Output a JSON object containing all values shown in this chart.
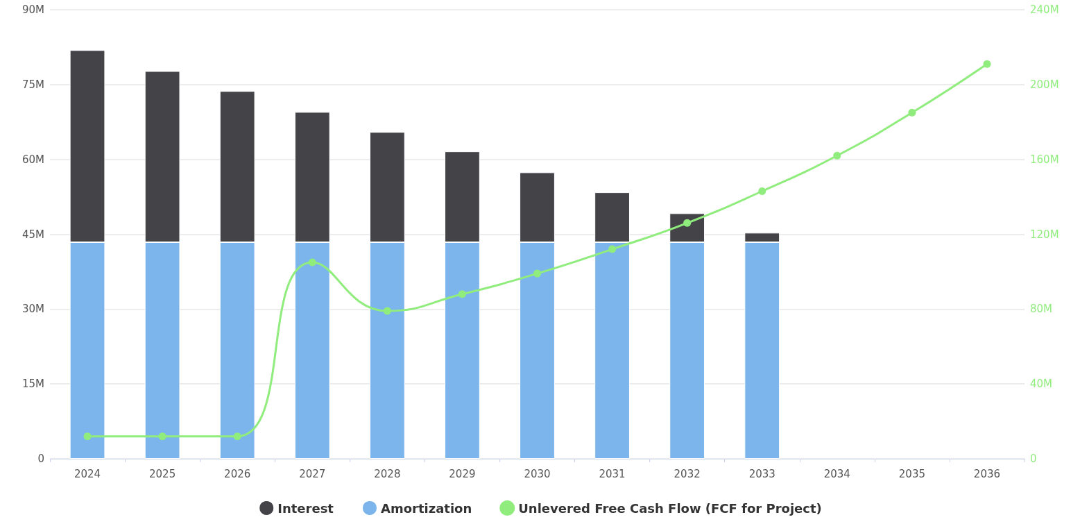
{
  "chart_data": {
    "type": "bar",
    "stacked": true,
    "categories": [
      "2024",
      "2025",
      "2026",
      "2027",
      "2028",
      "2029",
      "2030",
      "2031",
      "2032",
      "2033",
      "2034",
      "2035",
      "2036"
    ],
    "series": [
      {
        "name": "Amortization",
        "color": "#7cb5ec",
        "values": [
          43.4,
          43.4,
          43.4,
          43.4,
          43.4,
          43.4,
          43.4,
          43.4,
          43.4,
          43.4,
          null,
          null,
          null
        ]
      },
      {
        "name": "Interest",
        "color": "#434348",
        "values": [
          38.5,
          34.3,
          30.3,
          26.1,
          22.1,
          18.2,
          14.0,
          10.0,
          5.8,
          1.9,
          null,
          null,
          null
        ]
      },
      {
        "name": "Unlevered Free Cash Flow (FCF for Project)",
        "type": "line",
        "axis": "y2",
        "color": "#90ed7d",
        "values": [
          12,
          12,
          12,
          105,
          79,
          88,
          99,
          112,
          126,
          143,
          162,
          185,
          211
        ]
      }
    ],
    "ylim": [
      0,
      90
    ],
    "yticks": [
      {
        "value": 0,
        "label": "0"
      },
      {
        "value": 15,
        "label": "15M"
      },
      {
        "value": 30,
        "label": "30M"
      },
      {
        "value": 45,
        "label": "45M"
      },
      {
        "value": 60,
        "label": "60M"
      },
      {
        "value": 75,
        "label": "75M"
      },
      {
        "value": 90,
        "label": "90M"
      }
    ],
    "y2lim": [
      0,
      240
    ],
    "y2ticks": [
      {
        "value": 0,
        "label": "0"
      },
      {
        "value": 40,
        "label": "40M"
      },
      {
        "value": 80,
        "label": "80M"
      },
      {
        "value": 120,
        "label": "120M"
      },
      {
        "value": 160,
        "label": "160M"
      },
      {
        "value": 200,
        "label": "200M"
      },
      {
        "value": 240,
        "label": "240M"
      }
    ],
    "grid": "y",
    "legend": "bottom",
    "marker": "circle",
    "line_style": "solid"
  }
}
